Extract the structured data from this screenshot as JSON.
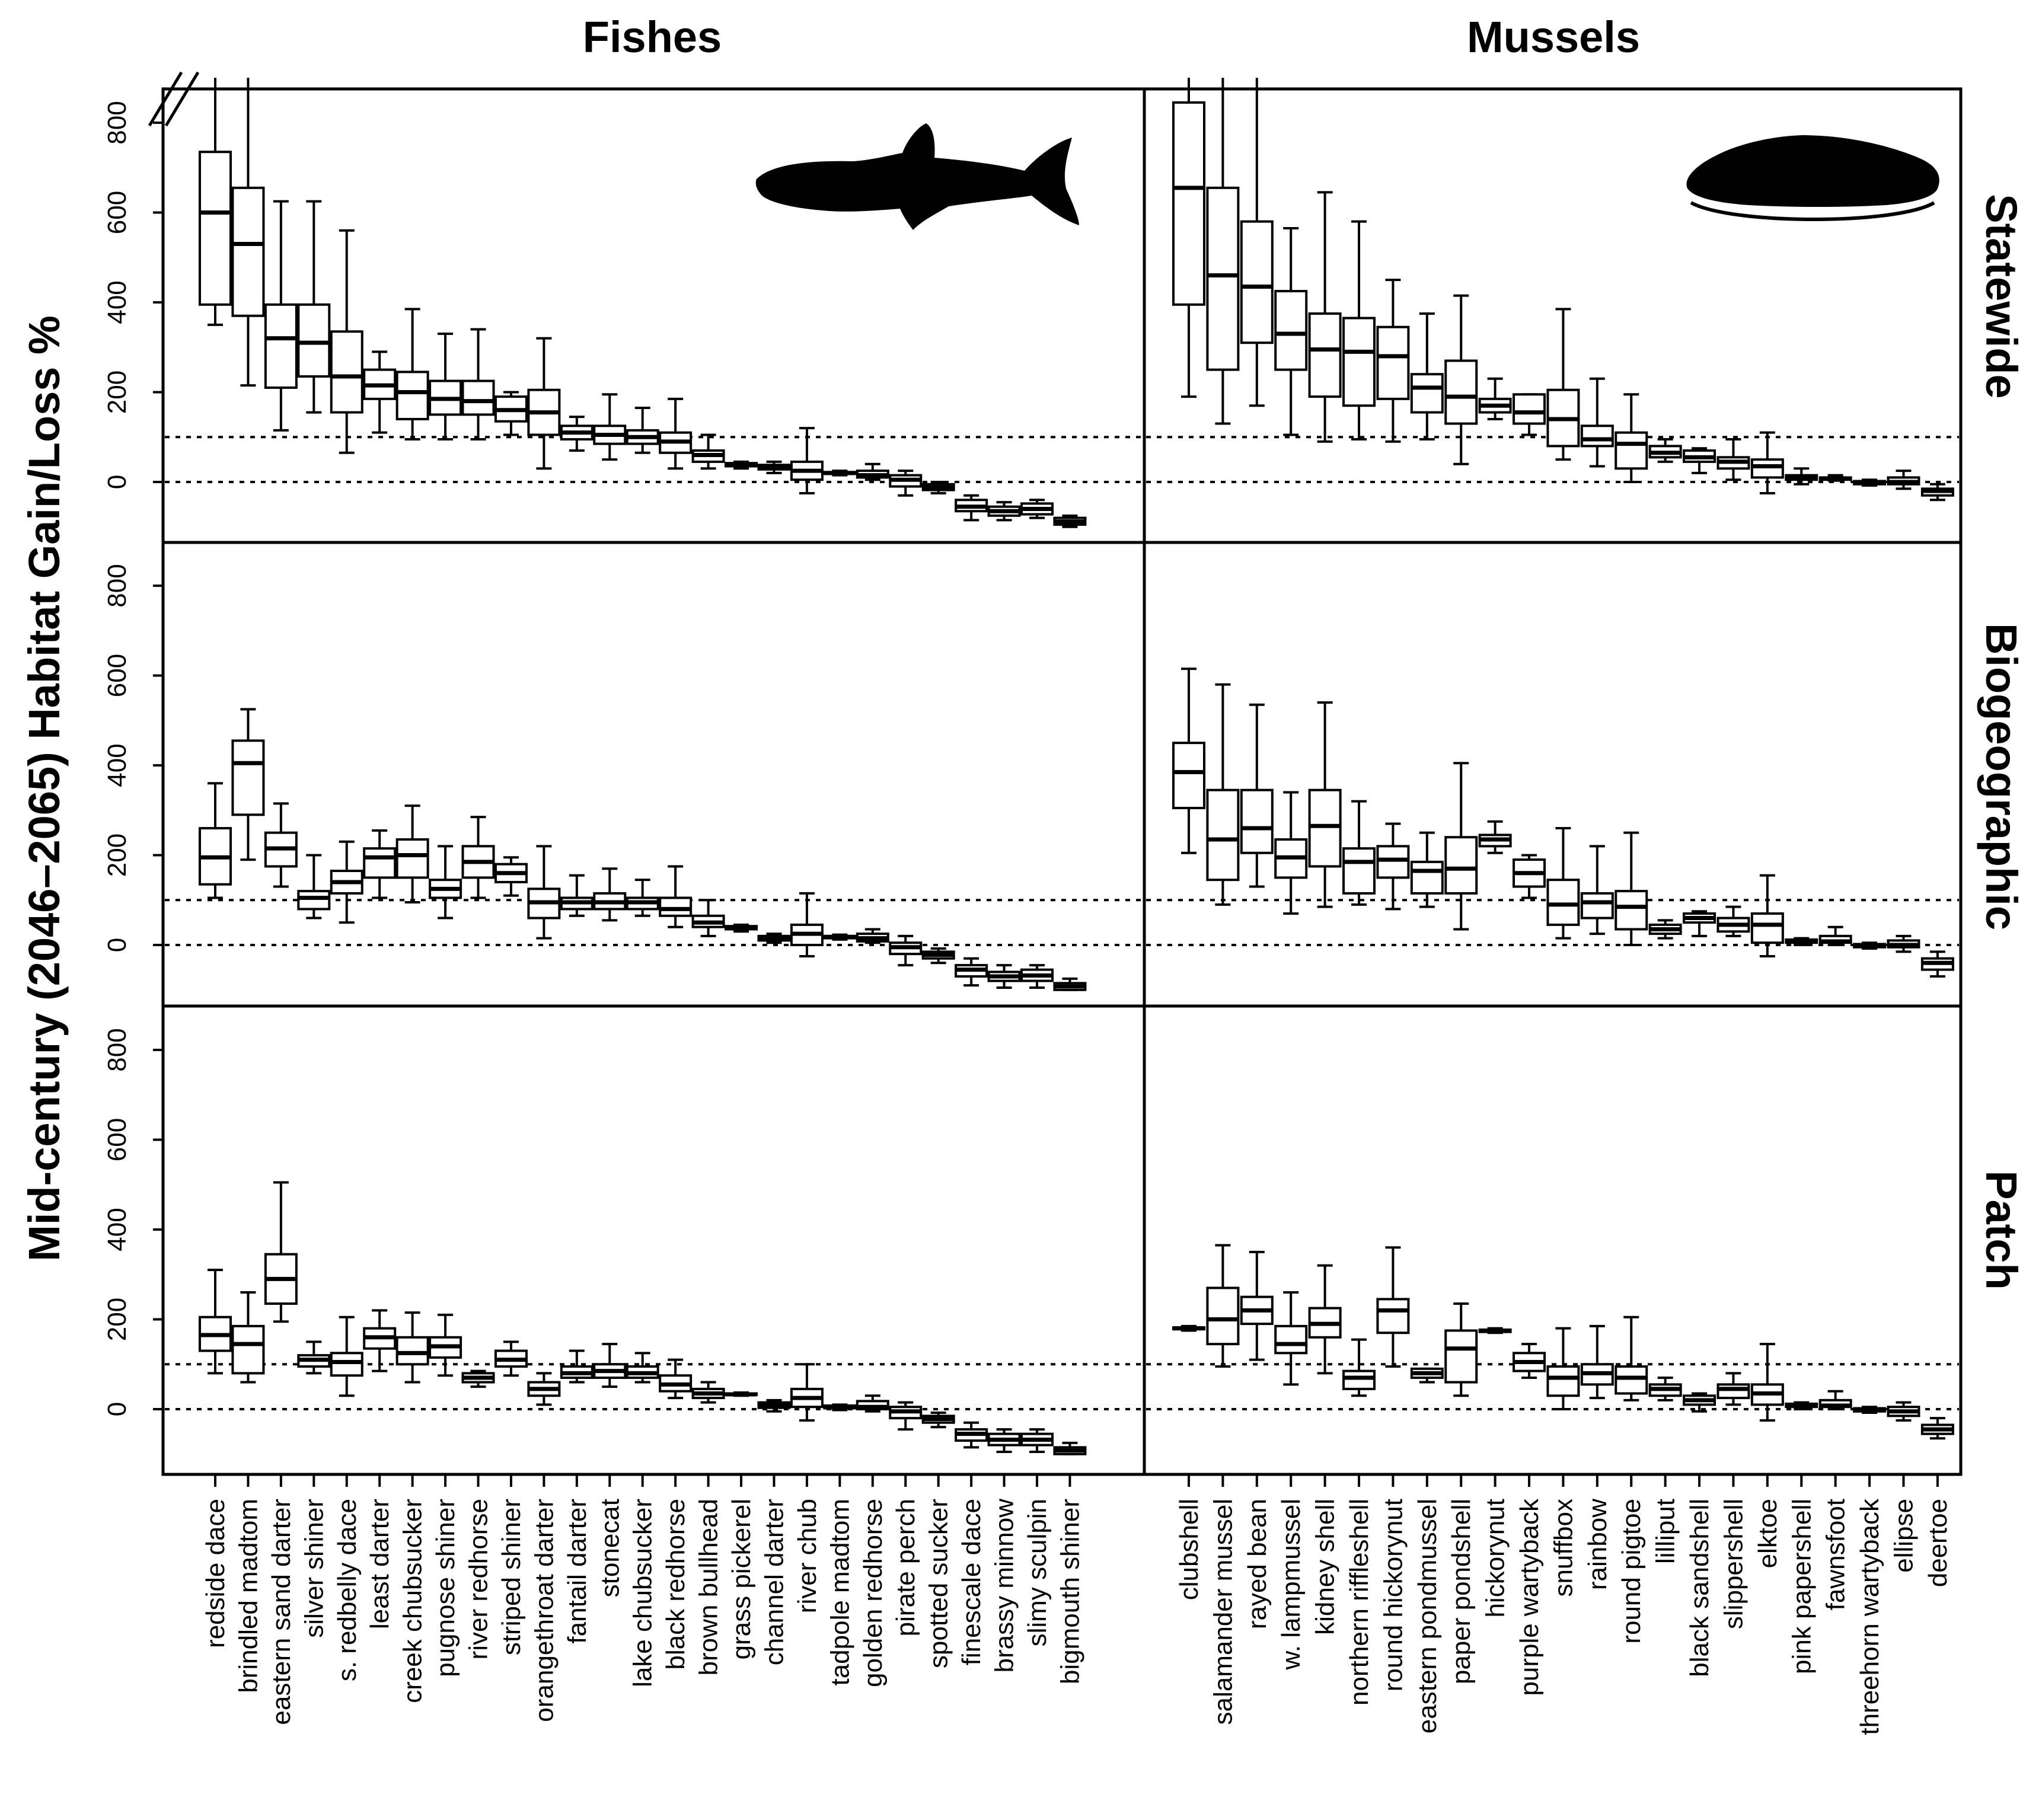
{
  "figure": {
    "ylabel": "Mid-century (2046–2065) Habitat Gain/Loss %",
    "column_titles": [
      "Fishes",
      "Mussels"
    ],
    "row_titles": [
      "Statewide",
      "Biogeographic",
      "Patch"
    ],
    "colors": {
      "ink": "#000000",
      "background": "#ffffff"
    },
    "icons": [
      "fish-silhouette-icon",
      "mussel-silhouette-icon",
      "axis-break-icon"
    ]
  },
  "chart_data": {
    "type": "box",
    "ylim": [
      -100,
      900
    ],
    "yticks": [
      0,
      200,
      400,
      600,
      800
    ],
    "reference_lines": [
      0,
      100
    ],
    "value_order": [
      "min",
      "q1",
      "median",
      "q3",
      "max"
    ],
    "fishes": {
      "categories": [
        "redside dace",
        "brindled madtom",
        "eastern sand darter",
        "silver shiner",
        "s. redbelly dace",
        "least darter",
        "creek chubsucker",
        "pugnose shiner",
        "river redhorse",
        "striped shiner",
        "orangethroat darter",
        "fantail darter",
        "stonecat",
        "lake chubsucker",
        "black redhorse",
        "brown bullhead",
        "grass pickerel",
        "channel darter",
        "river chub",
        "tadpole madtom",
        "golden redhorse",
        "pirate perch",
        "spotted sucker",
        "finescale dace",
        "brassy minnow",
        "slimy sculpin",
        "bigmouth shiner"
      ],
      "statewide": [
        [
          350,
          395,
          600,
          735,
          900
        ],
        [
          215,
          370,
          530,
          655,
          900
        ],
        [
          115,
          210,
          320,
          395,
          625
        ],
        [
          155,
          235,
          310,
          395,
          625
        ],
        [
          65,
          155,
          235,
          335,
          560
        ],
        [
          110,
          185,
          215,
          250,
          290
        ],
        [
          95,
          140,
          200,
          245,
          385
        ],
        [
          95,
          150,
          185,
          225,
          330
        ],
        [
          95,
          150,
          180,
          225,
          340
        ],
        [
          105,
          135,
          160,
          190,
          200
        ],
        [
          30,
          105,
          155,
          205,
          320
        ],
        [
          70,
          95,
          110,
          125,
          145
        ],
        [
          50,
          85,
          105,
          125,
          195
        ],
        [
          65,
          85,
          100,
          115,
          165
        ],
        [
          30,
          65,
          90,
          110,
          185
        ],
        [
          30,
          45,
          60,
          70,
          105
        ],
        [
          30,
          35,
          38,
          42,
          45
        ],
        [
          20,
          28,
          33,
          38,
          45
        ],
        [
          -25,
          5,
          25,
          45,
          120
        ],
        [
          15,
          18,
          20,
          22,
          25
        ],
        [
          5,
          10,
          15,
          25,
          40
        ],
        [
          -30,
          -10,
          5,
          15,
          25
        ],
        [
          -25,
          -18,
          -12,
          -5,
          0
        ],
        [
          -85,
          -65,
          -55,
          -40,
          -30
        ],
        [
          -85,
          -75,
          -65,
          -55,
          -45
        ],
        [
          -80,
          -72,
          -60,
          -48,
          -40
        ],
        [
          -100,
          -95,
          -88,
          -80,
          -75
        ]
      ],
      "biogeographic": [
        [
          105,
          135,
          195,
          260,
          360
        ],
        [
          190,
          290,
          405,
          455,
          525
        ],
        [
          130,
          175,
          215,
          250,
          315
        ],
        [
          60,
          80,
          105,
          120,
          200
        ],
        [
          50,
          115,
          140,
          165,
          230
        ],
        [
          105,
          150,
          195,
          215,
          255
        ],
        [
          95,
          150,
          200,
          235,
          310
        ],
        [
          60,
          105,
          125,
          145,
          220
        ],
        [
          105,
          150,
          185,
          220,
          285
        ],
        [
          110,
          140,
          160,
          180,
          195
        ],
        [
          15,
          60,
          95,
          125,
          220
        ],
        [
          65,
          80,
          95,
          105,
          155
        ],
        [
          55,
          80,
          95,
          115,
          170
        ],
        [
          65,
          80,
          95,
          105,
          145
        ],
        [
          40,
          65,
          80,
          105,
          175
        ],
        [
          20,
          40,
          50,
          65,
          100
        ],
        [
          30,
          35,
          38,
          42,
          45
        ],
        [
          5,
          10,
          15,
          20,
          25
        ],
        [
          -25,
          0,
          25,
          45,
          115
        ],
        [
          12,
          15,
          18,
          20,
          23
        ],
        [
          5,
          8,
          15,
          25,
          35
        ],
        [
          -45,
          -20,
          -5,
          5,
          20
        ],
        [
          -40,
          -30,
          -22,
          -15,
          -8
        ],
        [
          -90,
          -70,
          -55,
          -45,
          -30
        ],
        [
          -95,
          -80,
          -70,
          -60,
          -45
        ],
        [
          -95,
          -80,
          -68,
          -55,
          -45
        ],
        [
          -105,
          -100,
          -92,
          -85,
          -75
        ]
      ],
      "patch": [
        [
          80,
          130,
          165,
          205,
          310
        ],
        [
          60,
          80,
          145,
          185,
          260
        ],
        [
          195,
          235,
          290,
          345,
          505
        ],
        [
          80,
          95,
          110,
          120,
          150
        ],
        [
          30,
          75,
          105,
          125,
          205
        ],
        [
          85,
          135,
          160,
          180,
          220
        ],
        [
          60,
          100,
          125,
          160,
          215
        ],
        [
          75,
          115,
          140,
          160,
          210
        ],
        [
          50,
          60,
          70,
          80,
          85
        ],
        [
          75,
          95,
          110,
          130,
          150
        ],
        [
          10,
          30,
          45,
          60,
          80
        ],
        [
          60,
          70,
          80,
          95,
          130
        ],
        [
          50,
          70,
          85,
          100,
          145
        ],
        [
          60,
          70,
          80,
          95,
          125
        ],
        [
          25,
          40,
          55,
          75,
          110
        ],
        [
          15,
          25,
          35,
          45,
          60
        ],
        [
          30,
          32,
          33,
          35,
          37
        ],
        [
          -5,
          3,
          8,
          15,
          20
        ],
        [
          -25,
          5,
          25,
          45,
          100
        ],
        [
          -2,
          2,
          5,
          8,
          10
        ],
        [
          -5,
          0,
          5,
          18,
          30
        ],
        [
          -45,
          -20,
          -5,
          5,
          15
        ],
        [
          -40,
          -30,
          -22,
          -15,
          -8
        ],
        [
          -85,
          -70,
          -55,
          -45,
          -30
        ],
        [
          -95,
          -80,
          -68,
          -55,
          -45
        ],
        [
          -95,
          -80,
          -68,
          -55,
          -45
        ],
        [
          -105,
          -100,
          -92,
          -85,
          -75
        ]
      ]
    },
    "mussels": {
      "categories": [
        "clubshell",
        "salamander mussel",
        "rayed bean",
        "w. lampmussel",
        "kidney shell",
        "northern riffleshell",
        "round hickorynut",
        "eastern pondmussel",
        "paper pondshell",
        "hickorynut",
        "purple wartyback",
        "snuffbox",
        "rainbow",
        "round pigtoe",
        "lilliput",
        "black sandshell",
        "slippershell",
        "elktoe",
        "pink papershell",
        "fawnsfoot",
        "threehorn wartyback",
        "ellipse",
        "deertoe"
      ],
      "statewide": [
        [
          190,
          395,
          655,
          845,
          900
        ],
        [
          130,
          250,
          460,
          655,
          900
        ],
        [
          170,
          310,
          435,
          580,
          900
        ],
        [
          105,
          250,
          330,
          425,
          565
        ],
        [
          90,
          190,
          295,
          375,
          645
        ],
        [
          95,
          170,
          290,
          365,
          580
        ],
        [
          90,
          185,
          280,
          345,
          450
        ],
        [
          95,
          155,
          210,
          240,
          375
        ],
        [
          40,
          130,
          190,
          270,
          415
        ],
        [
          140,
          155,
          170,
          185,
          230
        ],
        [
          105,
          130,
          155,
          195,
          195
        ],
        [
          50,
          80,
          140,
          205,
          385
        ],
        [
          35,
          80,
          95,
          125,
          230
        ],
        [
          0,
          30,
          85,
          110,
          195
        ],
        [
          45,
          55,
          65,
          80,
          95
        ],
        [
          20,
          45,
          55,
          70,
          75
        ],
        [
          5,
          30,
          45,
          55,
          95
        ],
        [
          -25,
          10,
          35,
          50,
          110
        ],
        [
          -5,
          5,
          10,
          15,
          30
        ],
        [
          3,
          5,
          8,
          10,
          15
        ],
        [
          -8,
          -5,
          -2,
          2,
          5
        ],
        [
          -15,
          -5,
          0,
          10,
          25
        ],
        [
          -40,
          -30,
          -20,
          -15,
          -5
        ]
      ],
      "biogeographic": [
        [
          205,
          305,
          385,
          450,
          615
        ],
        [
          90,
          145,
          235,
          345,
          580
        ],
        [
          130,
          205,
          260,
          345,
          535
        ],
        [
          70,
          150,
          195,
          235,
          340
        ],
        [
          85,
          175,
          265,
          345,
          540
        ],
        [
          90,
          115,
          185,
          215,
          320
        ],
        [
          80,
          150,
          190,
          220,
          270
        ],
        [
          85,
          115,
          165,
          185,
          250
        ],
        [
          35,
          115,
          170,
          240,
          405
        ],
        [
          205,
          220,
          235,
          245,
          275
        ],
        [
          105,
          130,
          160,
          190,
          200
        ],
        [
          15,
          45,
          90,
          145,
          260
        ],
        [
          25,
          60,
          95,
          115,
          220
        ],
        [
          0,
          35,
          85,
          120,
          250
        ],
        [
          15,
          25,
          35,
          45,
          55
        ],
        [
          20,
          50,
          60,
          70,
          75
        ],
        [
          20,
          30,
          45,
          60,
          85
        ],
        [
          -25,
          5,
          45,
          70,
          155
        ],
        [
          0,
          5,
          8,
          12,
          15
        ],
        [
          0,
          5,
          8,
          20,
          40
        ],
        [
          -8,
          -5,
          -2,
          2,
          5
        ],
        [
          -15,
          -5,
          0,
          10,
          20
        ],
        [
          -70,
          -55,
          -40,
          -30,
          -15
        ]
      ],
      "patch": [
        [
          175,
          178,
          180,
          182,
          185
        ],
        [
          95,
          145,
          200,
          270,
          365
        ],
        [
          110,
          190,
          220,
          250,
          350
        ],
        [
          55,
          125,
          145,
          185,
          260
        ],
        [
          80,
          160,
          190,
          225,
          320
        ],
        [
          30,
          45,
          70,
          85,
          155
        ],
        [
          95,
          170,
          220,
          245,
          360
        ],
        [
          60,
          70,
          80,
          90,
          90
        ],
        [
          30,
          60,
          135,
          175,
          235
        ],
        [
          170,
          172,
          175,
          177,
          180
        ],
        [
          70,
          85,
          105,
          125,
          145
        ],
        [
          0,
          30,
          70,
          95,
          180
        ],
        [
          25,
          55,
          80,
          100,
          185
        ],
        [
          20,
          35,
          70,
          95,
          205
        ],
        [
          20,
          30,
          45,
          55,
          70
        ],
        [
          -5,
          10,
          20,
          30,
          35
        ],
        [
          10,
          25,
          45,
          55,
          80
        ],
        [
          -25,
          10,
          35,
          55,
          145
        ],
        [
          0,
          5,
          8,
          12,
          15
        ],
        [
          0,
          5,
          8,
          20,
          40
        ],
        [
          -8,
          -5,
          -2,
          2,
          5
        ],
        [
          -25,
          -15,
          -5,
          5,
          15
        ],
        [
          -65,
          -55,
          -45,
          -35,
          -20
        ]
      ]
    }
  }
}
